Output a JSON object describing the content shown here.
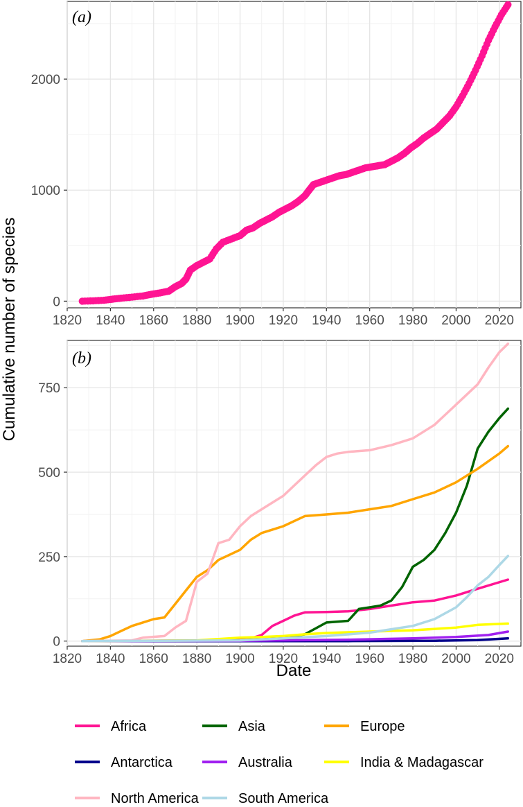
{
  "chart_data": [
    {
      "panel": "(a)",
      "type": "scatter",
      "title": "",
      "xlabel": "Date",
      "ylabel": "Cumulative number of species",
      "xlim": [
        1820,
        2030
      ],
      "ylim": [
        -60,
        2700
      ],
      "x_ticks": [
        "1820",
        "1840",
        "1860",
        "1880",
        "1900",
        "1920",
        "1940",
        "1960",
        "1980",
        "2000",
        "2020"
      ],
      "y_ticks": [
        "0",
        "1000",
        "2000"
      ],
      "color": "#ff1493",
      "points": [
        [
          1827,
          0
        ],
        [
          1832,
          3
        ],
        [
          1837,
          8
        ],
        [
          1841,
          18
        ],
        [
          1845,
          27
        ],
        [
          1850,
          36
        ],
        [
          1855,
          47
        ],
        [
          1859,
          62
        ],
        [
          1863,
          75
        ],
        [
          1867,
          90
        ],
        [
          1870,
          130
        ],
        [
          1873,
          160
        ],
        [
          1875,
          200
        ],
        [
          1877,
          280
        ],
        [
          1880,
          320
        ],
        [
          1883,
          350
        ],
        [
          1886,
          380
        ],
        [
          1889,
          470
        ],
        [
          1892,
          530
        ],
        [
          1896,
          560
        ],
        [
          1900,
          590
        ],
        [
          1903,
          640
        ],
        [
          1906,
          660
        ],
        [
          1909,
          700
        ],
        [
          1912,
          730
        ],
        [
          1915,
          760
        ],
        [
          1918,
          800
        ],
        [
          1921,
          830
        ],
        [
          1924,
          860
        ],
        [
          1927,
          900
        ],
        [
          1930,
          950
        ],
        [
          1932,
          1000
        ],
        [
          1934,
          1050
        ],
        [
          1937,
          1070
        ],
        [
          1940,
          1090
        ],
        [
          1943,
          1110
        ],
        [
          1946,
          1130
        ],
        [
          1949,
          1140
        ],
        [
          1952,
          1160
        ],
        [
          1955,
          1180
        ],
        [
          1958,
          1200
        ],
        [
          1961,
          1210
        ],
        [
          1964,
          1220
        ],
        [
          1967,
          1230
        ],
        [
          1970,
          1260
        ],
        [
          1973,
          1290
        ],
        [
          1976,
          1330
        ],
        [
          1979,
          1380
        ],
        [
          1982,
          1420
        ],
        [
          1985,
          1470
        ],
        [
          1988,
          1510
        ],
        [
          1991,
          1550
        ],
        [
          1994,
          1610
        ],
        [
          1997,
          1670
        ],
        [
          2000,
          1750
        ],
        [
          2003,
          1850
        ],
        [
          2006,
          1960
        ],
        [
          2009,
          2080
        ],
        [
          2012,
          2210
        ],
        [
          2015,
          2350
        ],
        [
          2018,
          2470
        ],
        [
          2021,
          2580
        ],
        [
          2024,
          2670
        ]
      ]
    },
    {
      "panel": "(b)",
      "type": "line",
      "title": "",
      "xlabel": "Date",
      "ylabel": "Cumulative number of species",
      "xlim": [
        1820,
        2030
      ],
      "ylim": [
        -15,
        890
      ],
      "x_ticks": [
        "1820",
        "1840",
        "1860",
        "1880",
        "1900",
        "1920",
        "1940",
        "1960",
        "1980",
        "2000",
        "2020"
      ],
      "y_ticks": [
        "0",
        "250",
        "500",
        "750"
      ],
      "series": [
        {
          "name": "Africa",
          "color": "#ff1493",
          "points": [
            [
              1827,
              0
            ],
            [
              1890,
              2
            ],
            [
              1895,
              5
            ],
            [
              1905,
              8
            ],
            [
              1910,
              18
            ],
            [
              1915,
              45
            ],
            [
              1920,
              60
            ],
            [
              1925,
              75
            ],
            [
              1930,
              85
            ],
            [
              1940,
              86
            ],
            [
              1950,
              88
            ],
            [
              1960,
              95
            ],
            [
              1970,
              105
            ],
            [
              1980,
              115
            ],
            [
              1990,
              120
            ],
            [
              2000,
              135
            ],
            [
              2010,
              155
            ],
            [
              2024,
              182
            ]
          ]
        },
        {
          "name": "Asia",
          "color": "#006400",
          "points": [
            [
              1827,
              0
            ],
            [
              1900,
              2
            ],
            [
              1920,
              10
            ],
            [
              1930,
              20
            ],
            [
              1940,
              55
            ],
            [
              1950,
              60
            ],
            [
              1955,
              95
            ],
            [
              1960,
              100
            ],
            [
              1965,
              105
            ],
            [
              1970,
              120
            ],
            [
              1975,
              160
            ],
            [
              1980,
              220
            ],
            [
              1985,
              240
            ],
            [
              1990,
              270
            ],
            [
              1995,
              320
            ],
            [
              2000,
              380
            ],
            [
              2005,
              460
            ],
            [
              2010,
              570
            ],
            [
              2015,
              620
            ],
            [
              2020,
              660
            ],
            [
              2024,
              688
            ]
          ]
        },
        {
          "name": "Europe",
          "color": "#ffa500",
          "points": [
            [
              1827,
              0
            ],
            [
              1835,
              5
            ],
            [
              1840,
              15
            ],
            [
              1845,
              30
            ],
            [
              1850,
              45
            ],
            [
              1855,
              55
            ],
            [
              1860,
              65
            ],
            [
              1865,
              70
            ],
            [
              1870,
              110
            ],
            [
              1875,
              150
            ],
            [
              1880,
              190
            ],
            [
              1885,
              210
            ],
            [
              1890,
              240
            ],
            [
              1895,
              255
            ],
            [
              1900,
              270
            ],
            [
              1905,
              300
            ],
            [
              1910,
              320
            ],
            [
              1915,
              330
            ],
            [
              1920,
              340
            ],
            [
              1925,
              355
            ],
            [
              1930,
              370
            ],
            [
              1940,
              375
            ],
            [
              1950,
              380
            ],
            [
              1960,
              390
            ],
            [
              1970,
              400
            ],
            [
              1980,
              420
            ],
            [
              1990,
              440
            ],
            [
              2000,
              470
            ],
            [
              2010,
              510
            ],
            [
              2020,
              555
            ],
            [
              2024,
              577
            ]
          ]
        },
        {
          "name": "Antarctica",
          "color": "#00008b",
          "points": [
            [
              1827,
              0
            ],
            [
              1950,
              0
            ],
            [
              1990,
              1
            ],
            [
              2010,
              3
            ],
            [
              2024,
              8
            ]
          ]
        },
        {
          "name": "Australia",
          "color": "#a020f0",
          "points": [
            [
              1827,
              0
            ],
            [
              1900,
              1
            ],
            [
              1950,
              4
            ],
            [
              1980,
              8
            ],
            [
              2000,
              12
            ],
            [
              2015,
              18
            ],
            [
              2024,
              28
            ]
          ]
        },
        {
          "name": "India & Madagascar",
          "color": "#ffff00",
          "points": [
            [
              1827,
              0
            ],
            [
              1880,
              2
            ],
            [
              1890,
              6
            ],
            [
              1900,
              10
            ],
            [
              1910,
              12
            ],
            [
              1920,
              15
            ],
            [
              1930,
              20
            ],
            [
              1940,
              24
            ],
            [
              1960,
              28
            ],
            [
              1980,
              32
            ],
            [
              2000,
              40
            ],
            [
              2010,
              48
            ],
            [
              2024,
              52
            ]
          ]
        },
        {
          "name": "North America",
          "color": "#ffb6c1",
          "points": [
            [
              1827,
              0
            ],
            [
              1850,
              2
            ],
            [
              1855,
              10
            ],
            [
              1865,
              15
            ],
            [
              1870,
              40
            ],
            [
              1875,
              60
            ],
            [
              1880,
              175
            ],
            [
              1885,
              200
            ],
            [
              1890,
              290
            ],
            [
              1895,
              300
            ],
            [
              1900,
              340
            ],
            [
              1905,
              370
            ],
            [
              1910,
              390
            ],
            [
              1915,
              410
            ],
            [
              1920,
              430
            ],
            [
              1925,
              460
            ],
            [
              1930,
              490
            ],
            [
              1935,
              520
            ],
            [
              1940,
              545
            ],
            [
              1945,
              555
            ],
            [
              1950,
              560
            ],
            [
              1960,
              565
            ],
            [
              1970,
              580
            ],
            [
              1980,
              600
            ],
            [
              1990,
              640
            ],
            [
              2000,
              700
            ],
            [
              2010,
              760
            ],
            [
              2015,
              810
            ],
            [
              2020,
              855
            ],
            [
              2024,
              880
            ]
          ]
        },
        {
          "name": "South America",
          "color": "#add8e6",
          "points": [
            [
              1827,
              0
            ],
            [
              1900,
              2
            ],
            [
              1920,
              8
            ],
            [
              1940,
              15
            ],
            [
              1960,
              25
            ],
            [
              1970,
              35
            ],
            [
              1980,
              45
            ],
            [
              1990,
              65
            ],
            [
              2000,
              100
            ],
            [
              2005,
              130
            ],
            [
              2010,
              165
            ],
            [
              2015,
              190
            ],
            [
              2020,
              225
            ],
            [
              2024,
              252
            ]
          ]
        }
      ]
    }
  ],
  "legend": {
    "items": [
      {
        "label": "Africa",
        "color": "#ff1493"
      },
      {
        "label": "Asia",
        "color": "#006400"
      },
      {
        "label": "Europe",
        "color": "#ffa500"
      },
      {
        "label": "Antarctica",
        "color": "#00008b"
      },
      {
        "label": "Australia",
        "color": "#a020f0"
      },
      {
        "label": "India & Madagascar",
        "color": "#ffff00"
      },
      {
        "label": "North America",
        "color": "#ffb6c1"
      },
      {
        "label": "South America",
        "color": "#add8e6"
      }
    ]
  }
}
